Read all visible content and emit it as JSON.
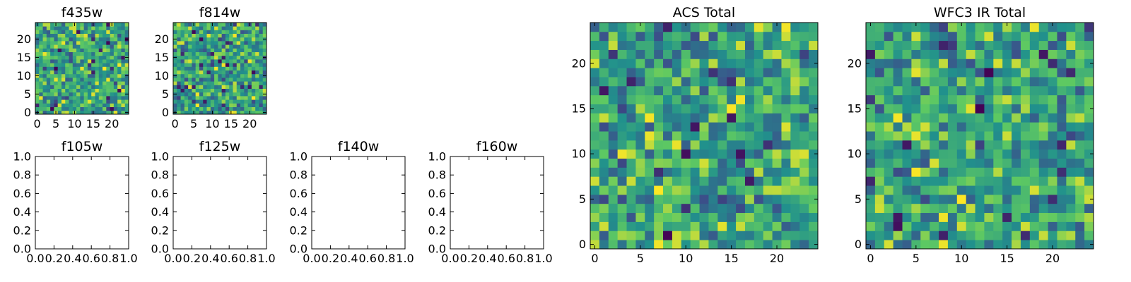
{
  "chart_data": [
    {
      "id": "f435w",
      "type": "heatmap",
      "title": "f435w",
      "grid": [
        25,
        25
      ],
      "seed": 11,
      "xlim": [
        -0.5,
        24.5
      ],
      "ylim": [
        -0.5,
        24.5
      ],
      "xticks": [
        0,
        5,
        10,
        15,
        20
      ],
      "yticks": [
        0,
        5,
        10,
        15,
        20
      ],
      "grid_lines": false
    },
    {
      "id": "f814w",
      "type": "heatmap",
      "title": "f814w",
      "grid": [
        25,
        25
      ],
      "seed": 23,
      "xlim": [
        -0.5,
        24.5
      ],
      "ylim": [
        -0.5,
        24.5
      ],
      "xticks": [
        0,
        5,
        10,
        15,
        20
      ],
      "yticks": [
        0,
        5,
        10,
        15,
        20
      ],
      "grid_lines": false
    },
    {
      "id": "f105w",
      "type": "heatmap",
      "title": "f105w",
      "empty": true,
      "xlim": [
        0,
        1
      ],
      "ylim": [
        0,
        1
      ],
      "xticks": [
        "0.0",
        "0.2",
        "0.4",
        "0.6",
        "0.8",
        "1.0"
      ],
      "yticks": [
        "0.0",
        "0.2",
        "0.4",
        "0.6",
        "0.8",
        "1.0"
      ],
      "grid_lines": false
    },
    {
      "id": "f125w",
      "type": "heatmap",
      "title": "f125w",
      "empty": true,
      "xlim": [
        0,
        1
      ],
      "ylim": [
        0,
        1
      ],
      "xticks": [
        "0.0",
        "0.2",
        "0.4",
        "0.6",
        "0.8",
        "1.0"
      ],
      "yticks": [
        "0.0",
        "0.2",
        "0.4",
        "0.6",
        "0.8",
        "1.0"
      ],
      "grid_lines": false
    },
    {
      "id": "f140w",
      "type": "heatmap",
      "title": "f140w",
      "empty": true,
      "xlim": [
        0,
        1
      ],
      "ylim": [
        0,
        1
      ],
      "xticks": [
        "0.0",
        "0.2",
        "0.4",
        "0.6",
        "0.8",
        "1.0"
      ],
      "yticks": [
        "0.0",
        "0.2",
        "0.4",
        "0.6",
        "0.8",
        "1.0"
      ],
      "grid_lines": false
    },
    {
      "id": "f160w",
      "type": "heatmap",
      "title": "f160w",
      "empty": true,
      "xlim": [
        0,
        1
      ],
      "ylim": [
        0,
        1
      ],
      "xticks": [
        "0.0",
        "0.2",
        "0.4",
        "0.6",
        "0.8",
        "1.0"
      ],
      "yticks": [
        "0.0",
        "0.2",
        "0.4",
        "0.6",
        "0.8",
        "1.0"
      ],
      "grid_lines": false
    },
    {
      "id": "acs-total",
      "type": "heatmap",
      "title": "ACS Total",
      "grid": [
        25,
        25
      ],
      "seed": 37,
      "xlim": [
        -0.5,
        24.5
      ],
      "ylim": [
        -0.5,
        24.5
      ],
      "xticks": [
        0,
        5,
        10,
        15,
        20
      ],
      "yticks": [
        0,
        5,
        10,
        15,
        20
      ],
      "grid_lines": false
    },
    {
      "id": "wfc3-ir-total",
      "type": "heatmap",
      "title": "WFC3 IR Total",
      "grid": [
        25,
        25
      ],
      "seed": 53,
      "xlim": [
        -0.5,
        24.5
      ],
      "ylim": [
        -0.5,
        24.5
      ],
      "xticks": [
        0,
        5,
        10,
        15,
        20
      ],
      "yticks": [
        0,
        5,
        10,
        15,
        20
      ],
      "grid_lines": false
    }
  ],
  "colors": {
    "colormap": "viridis",
    "colormap_stops": [
      "#440154",
      "#3b528b",
      "#21918c",
      "#5ec962",
      "#fde725"
    ],
    "axis": "#000000",
    "background": "#ffffff"
  }
}
